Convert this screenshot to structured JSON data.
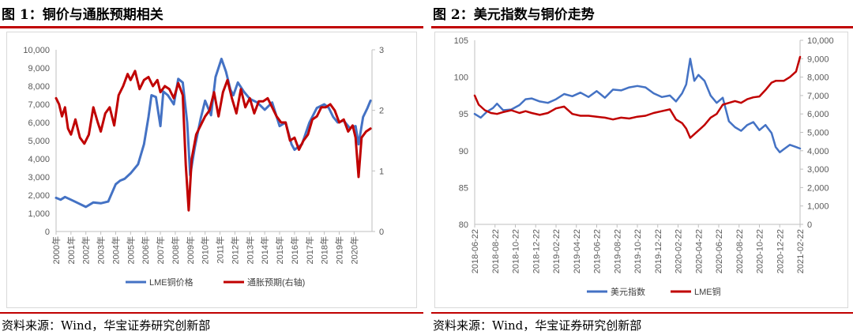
{
  "left_panel": {
    "title": "图 1：铜价与通胀预期相关",
    "source": "资料来源：Wind，华宝证券研究创新部"
  },
  "right_panel": {
    "title": "图 2：美元指数与铜价走势",
    "source": "资料来源：Wind，华宝证券研究创新部"
  },
  "colors": {
    "accent_red": "#c00000",
    "blue": "#4472c4",
    "red": "#c00000"
  },
  "chart_data": [
    {
      "type": "line",
      "title": "铜价与通胀预期相关",
      "x_ticks": [
        "2000年",
        "2001年",
        "2002年",
        "2003年",
        "2004年",
        "2005年",
        "2006年",
        "2007年",
        "2008年",
        "2009年",
        "2010年",
        "2011年",
        "2012年",
        "2013年",
        "2014年",
        "2015年",
        "2016年",
        "2017年",
        "2018年",
        "2019年",
        "2020年"
      ],
      "xlim": [
        2000,
        2021.2
      ],
      "y_left": {
        "ylim": [
          0,
          10000
        ],
        "ticks": [
          "0",
          "1,000",
          "2,000",
          "3,000",
          "4,000",
          "5,000",
          "6,000",
          "7,000",
          "8,000",
          "9,000",
          "10,000"
        ]
      },
      "y_right": {
        "ylim": [
          0,
          3
        ],
        "ticks": [
          "0",
          "1",
          "2",
          "3"
        ]
      },
      "legend": "bottom-center",
      "grid": false,
      "series": [
        {
          "name": "LME铜价格",
          "color": "#4472c4",
          "axis": "left",
          "x": [
            2000,
            2000.3,
            2000.6,
            2001,
            2001.5,
            2002,
            2002.5,
            2003,
            2003.5,
            2004,
            2004.3,
            2004.6,
            2005,
            2005.5,
            2005.9,
            2006.2,
            2006.4,
            2006.7,
            2007,
            2007.2,
            2007.5,
            2007.9,
            2008.2,
            2008.5,
            2008.8,
            2009,
            2009.3,
            2009.7,
            2010,
            2010.4,
            2010.7,
            2011.1,
            2011.4,
            2011.7,
            2011.9,
            2012.2,
            2012.6,
            2013,
            2013.5,
            2014,
            2014.5,
            2015,
            2015.4,
            2015.8,
            2016,
            2016.5,
            2017,
            2017.5,
            2018,
            2018.3,
            2018.6,
            2018.9,
            2019.3,
            2019.7,
            2020.1,
            2020.3,
            2020.6,
            2020.9,
            2021.1
          ],
          "y": [
            1850,
            1750,
            1900,
            1750,
            1550,
            1350,
            1600,
            1550,
            1650,
            2600,
            2800,
            2900,
            3200,
            3700,
            4800,
            6300,
            7500,
            7400,
            5800,
            7700,
            7500,
            7000,
            8400,
            8200,
            6000,
            3100,
            4600,
            6200,
            7200,
            6400,
            8500,
            9500,
            8800,
            7800,
            7500,
            8200,
            7700,
            7300,
            7100,
            6700,
            7100,
            5800,
            6000,
            4800,
            4500,
            4800,
            6000,
            6800,
            7000,
            6800,
            6300,
            6000,
            6100,
            5700,
            5800,
            4800,
            6300,
            6800,
            7200
          ]
        },
        {
          "name": "通胀预期(右轴)",
          "color": "#c00000",
          "axis": "right",
          "x": [
            2000,
            2000.2,
            2000.4,
            2000.6,
            2000.8,
            2001,
            2001.3,
            2001.6,
            2001.9,
            2002.2,
            2002.5,
            2002.8,
            2003,
            2003.3,
            2003.6,
            2003.9,
            2004.2,
            2004.5,
            2004.8,
            2005,
            2005.3,
            2005.6,
            2005.9,
            2006.2,
            2006.5,
            2006.8,
            2007,
            2007.3,
            2007.6,
            2007.9,
            2008.2,
            2008.5,
            2008.7,
            2008.9,
            2009.1,
            2009.4,
            2009.7,
            2010,
            2010.3,
            2010.6,
            2010.9,
            2011.2,
            2011.5,
            2011.8,
            2012.1,
            2012.4,
            2012.7,
            2013,
            2013.3,
            2013.6,
            2013.9,
            2014.2,
            2014.5,
            2014.8,
            2015.1,
            2015.4,
            2015.7,
            2016,
            2016.3,
            2016.6,
            2016.9,
            2017.2,
            2017.5,
            2017.8,
            2018.1,
            2018.4,
            2018.7,
            2019,
            2019.3,
            2019.6,
            2019.9,
            2020.1,
            2020.3,
            2020.5,
            2020.8,
            2021.1
          ],
          "y": [
            2.2,
            2.1,
            1.9,
            2.05,
            1.7,
            1.6,
            1.85,
            1.55,
            1.45,
            1.6,
            2.05,
            1.8,
            1.65,
            1.95,
            2.05,
            1.75,
            2.25,
            2.4,
            2.6,
            2.5,
            2.65,
            2.35,
            2.5,
            2.55,
            2.4,
            2.5,
            2.3,
            2.4,
            2.35,
            2.2,
            2.45,
            2.25,
            1.1,
            0.35,
            1.2,
            1.6,
            1.75,
            1.9,
            2.0,
            2.3,
            1.9,
            2.3,
            2.5,
            2.2,
            1.95,
            2.35,
            2.05,
            2.2,
            1.95,
            2.15,
            2.15,
            2.2,
            2.05,
            1.9,
            1.8,
            1.8,
            1.5,
            1.55,
            1.35,
            1.5,
            1.6,
            1.85,
            1.9,
            2.05,
            2.05,
            2.1,
            2.0,
            1.8,
            1.85,
            1.65,
            1.75,
            1.55,
            0.9,
            1.55,
            1.65,
            1.7
          ]
        }
      ]
    },
    {
      "type": "line",
      "title": "美元指数与铜价走势",
      "x_ticks": [
        "2018-06-22",
        "2018-08-22",
        "2018-10-22",
        "2018-12-22",
        "2019-02-22",
        "2019-04-22",
        "2019-06-22",
        "2019-08-22",
        "2019-10-22",
        "2019-12-22",
        "2020-02-22",
        "2020-04-22",
        "2020-06-22",
        "2020-08-22",
        "2020-10-22",
        "2020-12-22",
        "2021-02-22"
      ],
      "xlim": [
        0,
        16
      ],
      "y_left": {
        "ylim": [
          80,
          105
        ],
        "ticks": [
          "80",
          "85",
          "90",
          "95",
          "100",
          "105"
        ]
      },
      "y_right": {
        "ylim": [
          0,
          10000
        ],
        "ticks": [
          "0",
          "1,000",
          "2,000",
          "3,000",
          "4,000",
          "5,000",
          "6,000",
          "7,000",
          "8,000",
          "9,000",
          "10,000"
        ]
      },
      "legend": "bottom-center",
      "grid": false,
      "series": [
        {
          "name": "美元指数",
          "color": "#4472c4",
          "axis": "left",
          "x": [
            0,
            0.3,
            0.6,
            0.9,
            1.1,
            1.4,
            1.8,
            2.2,
            2.5,
            2.8,
            3.2,
            3.6,
            4.0,
            4.4,
            4.8,
            5.2,
            5.6,
            6.0,
            6.4,
            6.8,
            7.2,
            7.6,
            8.0,
            8.4,
            8.8,
            9.2,
            9.6,
            9.9,
            10.2,
            10.4,
            10.6,
            10.8,
            11.0,
            11.3,
            11.6,
            11.9,
            12.2,
            12.5,
            12.8,
            13.1,
            13.4,
            13.7,
            14.0,
            14.3,
            14.6,
            14.8,
            15.0,
            15.2,
            15.5,
            15.8,
            16.0
          ],
          "y": [
            95,
            94.5,
            95.3,
            95.8,
            96.4,
            95.5,
            95.6,
            96.2,
            97.0,
            97.1,
            96.7,
            96.5,
            97.0,
            97.7,
            97.4,
            97.9,
            97.3,
            98.1,
            97.2,
            98.3,
            98.2,
            98.6,
            98.8,
            98.6,
            97.8,
            97.3,
            97.5,
            96.7,
            97.8,
            99.0,
            102.5,
            99.5,
            100.3,
            99.5,
            97.5,
            96.5,
            97.2,
            94.0,
            93.2,
            92.7,
            93.5,
            93.9,
            92.8,
            93.5,
            92.4,
            90.5,
            89.8,
            90.2,
            90.8,
            90.5,
            90.3
          ]
        },
        {
          "name": "LME铜",
          "color": "#c00000",
          "axis": "right",
          "x": [
            0,
            0.2,
            0.5,
            0.8,
            1.1,
            1.4,
            1.8,
            2.2,
            2.5,
            2.8,
            3.2,
            3.6,
            4.0,
            4.4,
            4.8,
            5.2,
            5.6,
            6.0,
            6.4,
            6.8,
            7.2,
            7.6,
            8.0,
            8.4,
            8.8,
            9.2,
            9.6,
            9.9,
            10.2,
            10.4,
            10.6,
            10.8,
            11.0,
            11.3,
            11.6,
            11.9,
            12.2,
            12.5,
            12.8,
            13.1,
            13.4,
            13.7,
            14.0,
            14.3,
            14.6,
            14.8,
            15.0,
            15.2,
            15.5,
            15.8,
            16.0
          ],
          "y": [
            7000,
            6500,
            6200,
            6050,
            6000,
            6100,
            6200,
            6050,
            6150,
            6050,
            5950,
            6050,
            6300,
            6400,
            6000,
            5900,
            5900,
            5850,
            5800,
            5700,
            5800,
            5750,
            5850,
            5900,
            6050,
            6150,
            6250,
            5700,
            5500,
            5200,
            4700,
            4900,
            5100,
            5400,
            5800,
            6000,
            6500,
            6600,
            6700,
            6600,
            6800,
            6900,
            6950,
            7300,
            7700,
            7800,
            7800,
            7800,
            8000,
            8300,
            9100
          ]
        }
      ]
    }
  ]
}
